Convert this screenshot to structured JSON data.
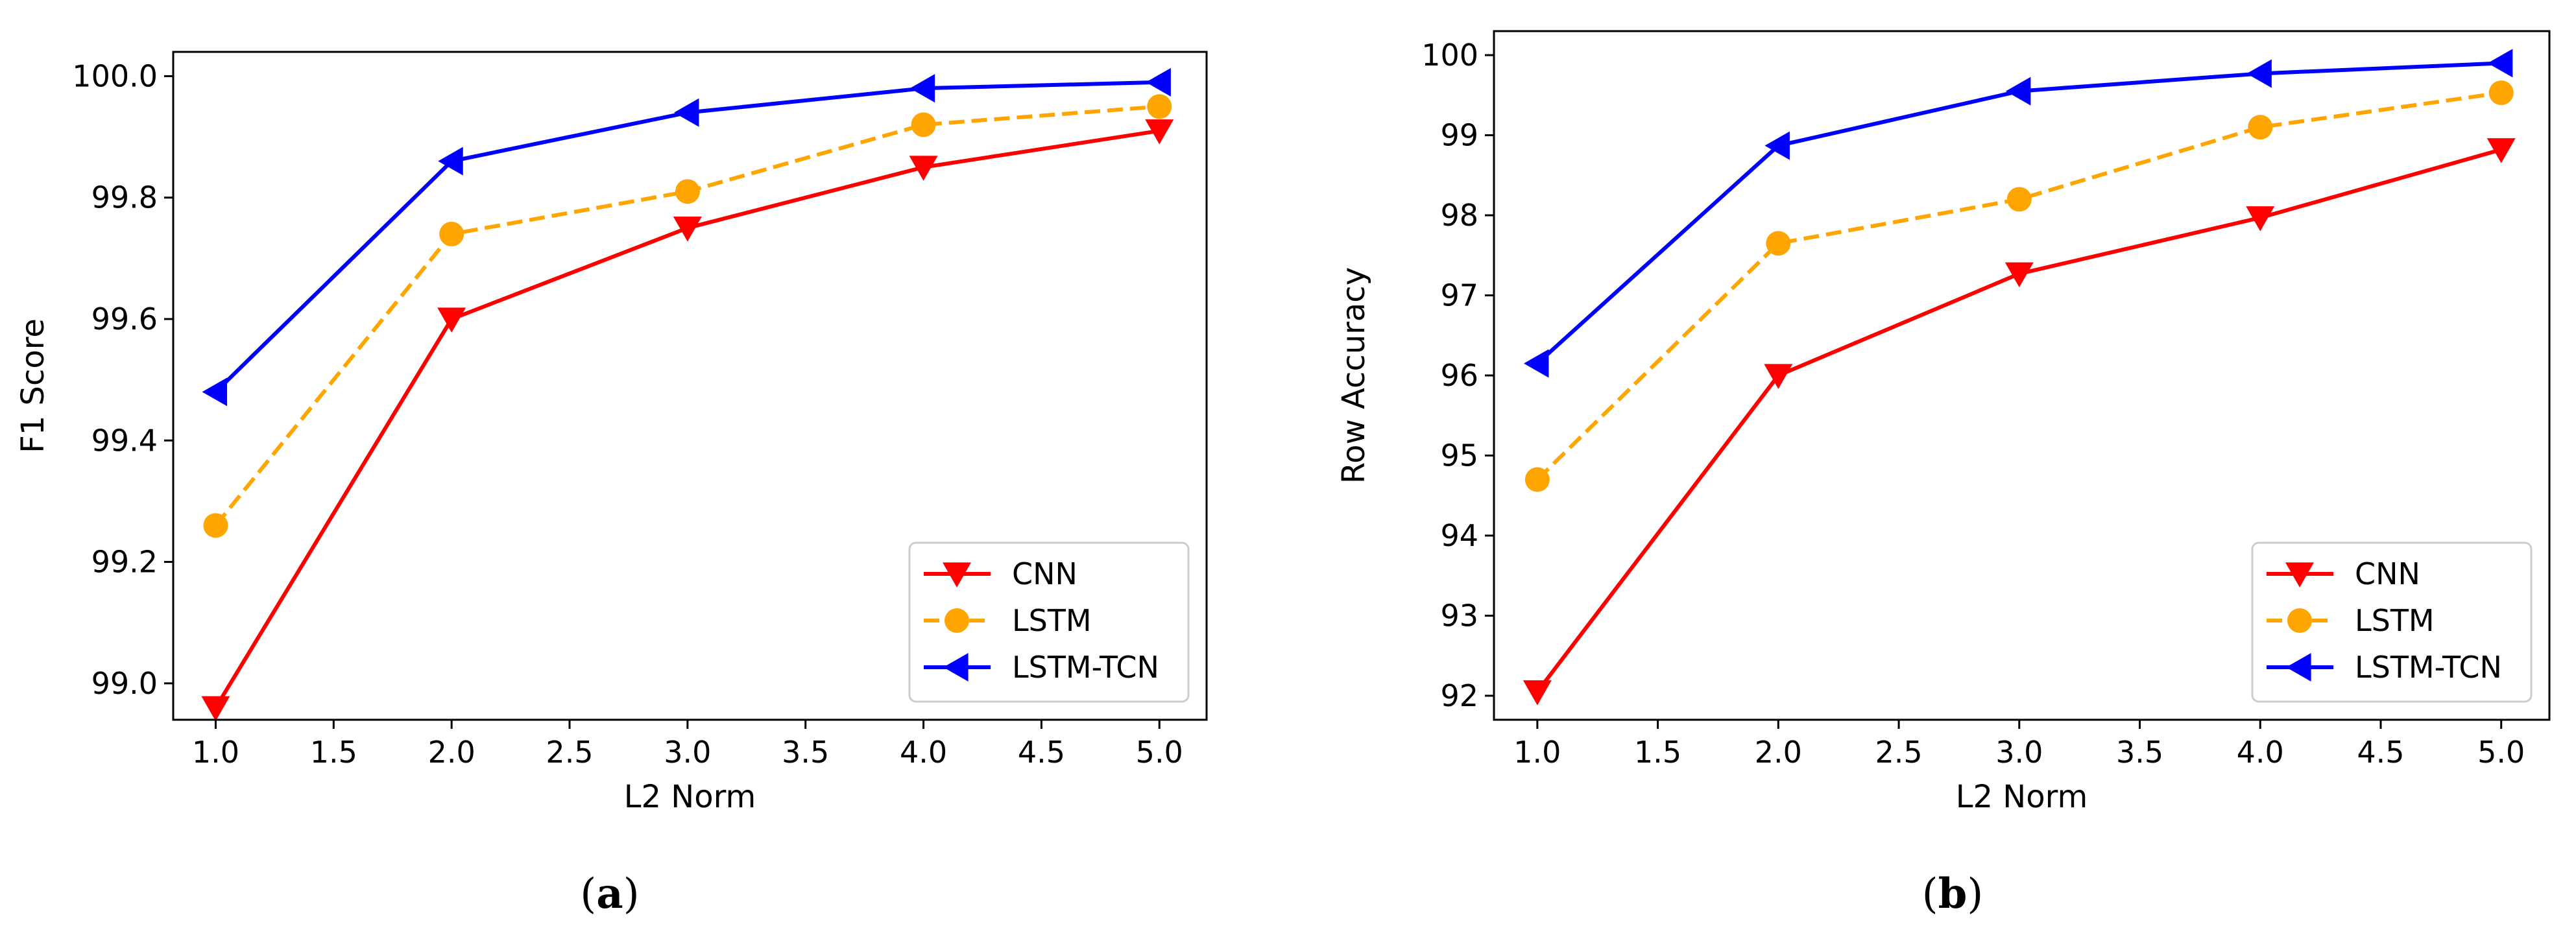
{
  "chart_data": [
    {
      "panel": "(a)",
      "type": "line",
      "title": "",
      "xlabel": "L2 Norm",
      "ylabel": "F1 Score",
      "xlim": [
        0.82,
        5.2
      ],
      "ylim": [
        98.94,
        100.04
      ],
      "xticks": [
        "1.0",
        "1.5",
        "2.0",
        "2.5",
        "3.0",
        "3.5",
        "4.0",
        "4.5",
        "5.0"
      ],
      "yticks": [
        "99.0",
        "99.2",
        "99.4",
        "99.6",
        "99.8",
        "100.0"
      ],
      "x": [
        1,
        2,
        3,
        4,
        5
      ],
      "legend_position": "lower-right",
      "grid": false,
      "series": [
        {
          "name": "CNN",
          "color": "#ff0000",
          "marker": "triangle-down",
          "dash": "solid",
          "values": [
            98.96,
            99.6,
            99.75,
            99.85,
            99.91
          ]
        },
        {
          "name": "LSTM",
          "color": "#ffa500",
          "marker": "circle",
          "dash": "dashed",
          "values": [
            99.26,
            99.74,
            99.81,
            99.92,
            99.95
          ]
        },
        {
          "name": "LSTM-TCN",
          "color": "#0000ff",
          "marker": "triangle-left",
          "dash": "solid",
          "values": [
            99.48,
            99.86,
            99.94,
            99.98,
            99.99
          ]
        }
      ]
    },
    {
      "panel": "(b)",
      "type": "line",
      "title": "",
      "xlabel": "L2 Norm",
      "ylabel": "Row Accuracy",
      "xlim": [
        0.82,
        5.2
      ],
      "ylim": [
        91.7,
        100.3
      ],
      "xticks": [
        "1.0",
        "1.5",
        "2.0",
        "2.5",
        "3.0",
        "3.5",
        "4.0",
        "4.5",
        "5.0"
      ],
      "yticks": [
        "92",
        "93",
        "94",
        "95",
        "96",
        "97",
        "98",
        "99",
        "100"
      ],
      "x": [
        1,
        2,
        3,
        4,
        5
      ],
      "legend_position": "lower-right",
      "grid": false,
      "series": [
        {
          "name": "CNN",
          "color": "#ff0000",
          "marker": "triangle-down",
          "dash": "solid",
          "values": [
            92.05,
            96.0,
            97.27,
            97.97,
            98.82
          ]
        },
        {
          "name": "LSTM",
          "color": "#ffa500",
          "marker": "circle",
          "dash": "dashed",
          "values": [
            94.7,
            97.65,
            98.2,
            99.1,
            99.53
          ]
        },
        {
          "name": "LSTM-TCN",
          "color": "#0000ff",
          "marker": "triangle-left",
          "dash": "solid",
          "values": [
            96.15,
            98.87,
            99.55,
            99.77,
            99.9
          ]
        }
      ]
    }
  ]
}
